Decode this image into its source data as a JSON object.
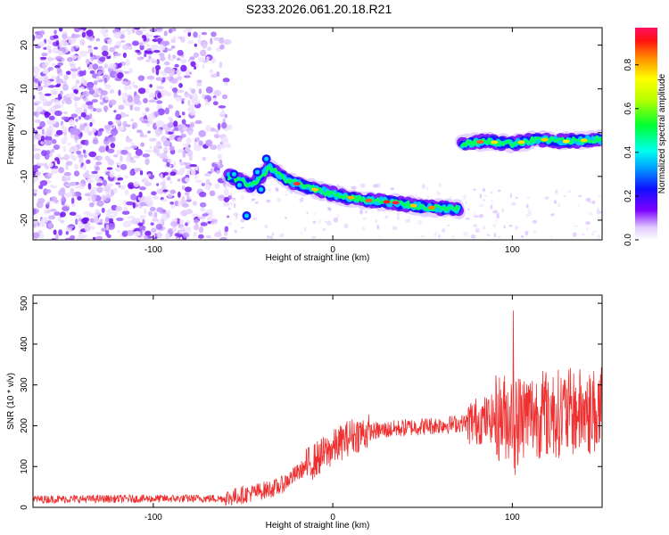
{
  "title": "S233.2026.061.20.18.R21",
  "chart_data": [
    {
      "type": "heatmap",
      "xlabel": "Height of straight line (km)",
      "ylabel": "Frequency (Hz)",
      "xlim": [
        -167,
        150
      ],
      "ylim": [
        -24.5,
        24
      ],
      "xticks": [
        -100,
        0,
        100
      ],
      "yticks": [
        -20,
        -10,
        0,
        10,
        20
      ],
      "colorbar": {
        "label": "Normalized spectral amplitude",
        "range": [
          0,
          0.97
        ],
        "ticks": [
          "0.0",
          "0.2",
          "0.4",
          "0.6",
          "0.8"
        ]
      },
      "ridge": [
        {
          "x": -58,
          "y": -10
        },
        {
          "x": -45,
          "y": -12
        },
        {
          "x": -35,
          "y": -8
        },
        {
          "x": -25,
          "y": -11
        },
        {
          "x": -10,
          "y": -13
        },
        {
          "x": 5,
          "y": -14.5
        },
        {
          "x": 20,
          "y": -15.5
        },
        {
          "x": 35,
          "y": -16
        },
        {
          "x": 50,
          "y": -17
        },
        {
          "x": 70,
          "y": -17.5
        },
        {
          "x": 72,
          "y": -2.5
        },
        {
          "x": 85,
          "y": -2
        },
        {
          "x": 100,
          "y": -2.5
        },
        {
          "x": 115,
          "y": -1.5
        },
        {
          "x": 130,
          "y": -2
        },
        {
          "x": 150,
          "y": -1.5
        }
      ]
    },
    {
      "type": "line",
      "xlabel": "Height of straight line (km)",
      "ylabel": "SNR (10 * v/v)",
      "xlim": [
        -167,
        150
      ],
      "ylim": [
        0,
        520
      ],
      "xticks": [
        -100,
        0,
        100
      ],
      "yticks": [
        0,
        100,
        200,
        300,
        400,
        500
      ],
      "color": "#ee3030",
      "trend": [
        {
          "x": -167,
          "y": 20
        },
        {
          "x": -60,
          "y": 22
        },
        {
          "x": -45,
          "y": 35
        },
        {
          "x": -30,
          "y": 50
        },
        {
          "x": -15,
          "y": 100
        },
        {
          "x": -5,
          "y": 130
        },
        {
          "x": 10,
          "y": 175
        },
        {
          "x": 20,
          "y": 185
        },
        {
          "x": 40,
          "y": 195
        },
        {
          "x": 70,
          "y": 205
        },
        {
          "x": 85,
          "y": 215
        },
        {
          "x": 100,
          "y": 225
        },
        {
          "x": 120,
          "y": 230
        },
        {
          "x": 150,
          "y": 235
        }
      ]
    }
  ]
}
